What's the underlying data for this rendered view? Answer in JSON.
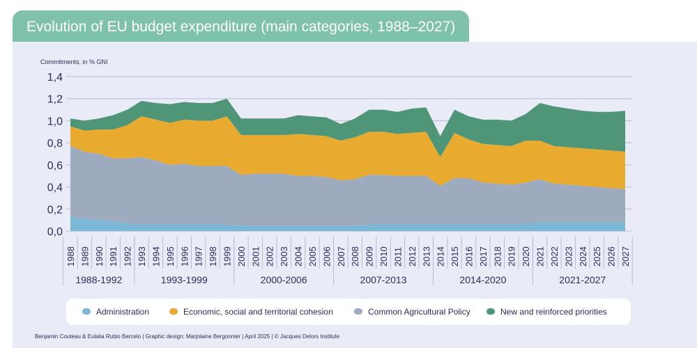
{
  "title": "Evolution of EU budget expenditure (main categories, 1988–2027)",
  "credit": "Benjamin Couteau & Eulalia Rubio Barcelo | Graphic design: Marjolaine Bergonnier | April 2025 | © Jacques Delors Institute",
  "chart_data": {
    "type": "area",
    "stacked": true,
    "ylabel": "Commitments, in % GNI",
    "ylim": [
      0,
      1.4
    ],
    "y_ticks": [
      "0,0",
      "0,2",
      "0,4",
      "0,6",
      "0,8",
      "1,0",
      "1,2",
      "1,4"
    ],
    "x": [
      "1988",
      "1989",
      "1990",
      "1991",
      "1992",
      "1993",
      "1994",
      "1995",
      "1996",
      "1997",
      "1998",
      "1999",
      "2000",
      "2001",
      "2002",
      "2003",
      "2004",
      "2005",
      "2006",
      "2007",
      "2008",
      "2009",
      "2010",
      "2011",
      "2012",
      "2013",
      "2014",
      "2015",
      "2016",
      "2017",
      "2018",
      "2019",
      "2020",
      "2021",
      "2022",
      "2023",
      "2024",
      "2025",
      "2026",
      "2027"
    ],
    "periods": [
      {
        "label": "1988-1992",
        "from": "1988",
        "to": "1992"
      },
      {
        "label": "1993-1999",
        "from": "1993",
        "to": "1999"
      },
      {
        "label": "2000-2006",
        "from": "2000",
        "to": "2006"
      },
      {
        "label": "2007-2013",
        "from": "2007",
        "to": "2013"
      },
      {
        "label": "2014-2020",
        "from": "2014",
        "to": "2020"
      },
      {
        "label": "2021-2027",
        "from": "2021",
        "to": "2027"
      }
    ],
    "series": [
      {
        "name": "Administration",
        "color": "#7db7d6",
        "values": [
          0.13,
          0.11,
          0.1,
          0.09,
          0.07,
          0.06,
          0.06,
          0.06,
          0.06,
          0.06,
          0.06,
          0.06,
          0.05,
          0.05,
          0.05,
          0.05,
          0.05,
          0.05,
          0.05,
          0.05,
          0.05,
          0.06,
          0.06,
          0.06,
          0.06,
          0.06,
          0.06,
          0.06,
          0.06,
          0.06,
          0.06,
          0.06,
          0.07,
          0.08,
          0.08,
          0.08,
          0.08,
          0.08,
          0.08,
          0.08
        ]
      },
      {
        "name": "Common Agricultural Policy",
        "color": "#9eaabd",
        "values": [
          0.64,
          0.61,
          0.6,
          0.57,
          0.59,
          0.61,
          0.58,
          0.54,
          0.55,
          0.53,
          0.53,
          0.53,
          0.46,
          0.47,
          0.47,
          0.47,
          0.45,
          0.45,
          0.44,
          0.41,
          0.42,
          0.45,
          0.45,
          0.44,
          0.44,
          0.44,
          0.35,
          0.42,
          0.42,
          0.38,
          0.37,
          0.36,
          0.37,
          0.39,
          0.35,
          0.34,
          0.33,
          0.32,
          0.31,
          0.3
        ]
      },
      {
        "name": "Economic, social and territorial cohesion",
        "color": "#e9ab2f",
        "values": [
          0.18,
          0.19,
          0.22,
          0.26,
          0.3,
          0.37,
          0.37,
          0.38,
          0.4,
          0.41,
          0.41,
          0.45,
          0.36,
          0.35,
          0.35,
          0.35,
          0.38,
          0.37,
          0.37,
          0.36,
          0.38,
          0.39,
          0.39,
          0.38,
          0.39,
          0.4,
          0.26,
          0.41,
          0.35,
          0.35,
          0.35,
          0.35,
          0.38,
          0.35,
          0.34,
          0.34,
          0.34,
          0.34,
          0.34,
          0.34
        ]
      },
      {
        "name": "New and reinforced priorities",
        "color": "#4f9679",
        "values": [
          0.07,
          0.09,
          0.1,
          0.13,
          0.14,
          0.14,
          0.15,
          0.17,
          0.16,
          0.16,
          0.16,
          0.16,
          0.15,
          0.15,
          0.15,
          0.15,
          0.17,
          0.17,
          0.17,
          0.15,
          0.17,
          0.2,
          0.2,
          0.2,
          0.22,
          0.22,
          0.19,
          0.21,
          0.21,
          0.22,
          0.23,
          0.23,
          0.24,
          0.34,
          0.36,
          0.35,
          0.34,
          0.34,
          0.35,
          0.37
        ]
      }
    ],
    "legend": [
      {
        "name": "Administration",
        "color": "#7db7d6"
      },
      {
        "name": "Economic, social and territorial cohesion",
        "color": "#e9ab2f"
      },
      {
        "name": "Common Agricultural Policy",
        "color": "#9eaabd"
      },
      {
        "name": "New and reinforced priorities",
        "color": "#4f9679"
      }
    ]
  },
  "colors": {
    "title_bar": "#7ec3a9",
    "panel": "#e9ecf6",
    "text": "#2a2c5a",
    "grid": "#b8bbd6"
  }
}
